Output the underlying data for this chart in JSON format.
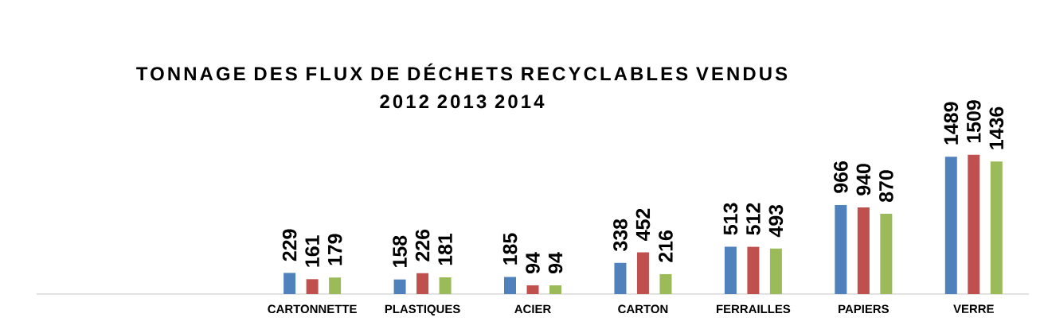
{
  "chart_data": {
    "type": "bar",
    "title": "TONNAGE DES FLUX DE DÉCHETS RECYCLABLES VENDUS",
    "subtitle": "2012 2013 2014",
    "categories": [
      null,
      null,
      "CARTONNETTE",
      "PLASTIQUES",
      "ACIER",
      "CARTON",
      "FERRAILLES",
      "PAPIERS",
      "VERRE"
    ],
    "series": [
      {
        "color": "#4f81bd",
        "values": [
          null,
          null,
          229,
          158,
          185,
          338,
          513,
          966,
          1489
        ]
      },
      {
        "color": "#c0504d",
        "values": [
          null,
          null,
          161,
          226,
          94,
          452,
          512,
          940,
          1509
        ]
      },
      {
        "color": "#9bbb59",
        "values": [
          null,
          null,
          179,
          181,
          94,
          216,
          493,
          870,
          1436
        ]
      }
    ],
    "data_labels": true
  }
}
